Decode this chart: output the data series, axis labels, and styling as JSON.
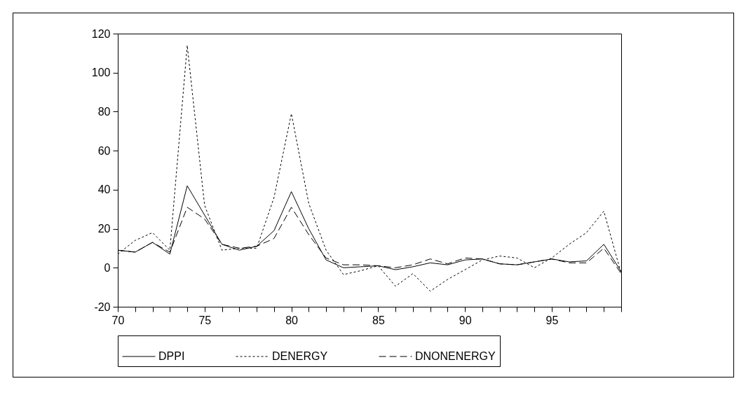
{
  "chart_data": {
    "type": "line",
    "x": [
      70,
      71,
      72,
      73,
      74,
      75,
      76,
      77,
      78,
      79,
      80,
      81,
      82,
      83,
      84,
      85,
      86,
      87,
      88,
      89,
      90,
      91,
      92,
      93,
      94,
      95,
      96,
      97,
      98,
      99
    ],
    "series": [
      {
        "name": "DPPI",
        "color": "#000000",
        "line_style": "solid",
        "values": [
          9,
          8,
          13,
          7,
          42,
          27,
          12,
          9,
          11,
          19,
          39,
          20,
          4,
          0,
          0.5,
          1,
          -1,
          0.5,
          2.5,
          1.5,
          4,
          4.5,
          2,
          1.5,
          3,
          4.5,
          3,
          3.5,
          12,
          -2
        ]
      },
      {
        "name": "DENERGY",
        "color": "#000000",
        "line_style": "dotted",
        "values": [
          7,
          14,
          18,
          9,
          114,
          32,
          9,
          10,
          10,
          36,
          79,
          33,
          9,
          -3.5,
          -1.5,
          1,
          -9.5,
          -3,
          -12,
          -6,
          -1,
          4,
          6,
          5,
          0,
          5,
          12,
          18,
          29,
          -3
        ]
      },
      {
        "name": "DNONENERGY",
        "color": "#000000",
        "line_style": "dashed",
        "values": [
          9,
          8,
          13,
          8,
          31,
          25,
          12,
          10,
          11,
          15,
          31,
          17,
          5,
          1.5,
          1.5,
          1,
          0,
          1.5,
          4.5,
          2,
          5,
          4.5,
          2,
          1.5,
          3,
          4.5,
          2.5,
          2.5,
          10,
          -3
        ]
      }
    ],
    "xlim": [
      70,
      99
    ],
    "xticks": [
      70,
      {
        "value": 71,
        "label": null
      },
      {
        "value": 72,
        "label": null
      },
      {
        "value": 73,
        "label": null
      },
      {
        "value": 74,
        "label": null
      },
      75,
      {
        "value": 76,
        "label": null
      },
      {
        "value": 77,
        "label": null
      },
      {
        "value": 78,
        "label": null
      },
      {
        "value": 79,
        "label": null
      },
      80,
      {
        "value": 81,
        "label": null
      },
      {
        "value": 82,
        "label": null
      },
      {
        "value": 83,
        "label": null
      },
      {
        "value": 84,
        "label": null
      },
      85,
      {
        "value": 86,
        "label": null
      },
      {
        "value": 87,
        "label": null
      },
      {
        "value": 88,
        "label": null
      },
      {
        "value": 89,
        "label": null
      },
      90,
      {
        "value": 91,
        "label": null
      },
      {
        "value": 92,
        "label": null
      },
      {
        "value": 93,
        "label": null
      },
      {
        "value": 94,
        "label": null
      },
      95,
      {
        "value": 96,
        "label": null
      },
      {
        "value": 97,
        "label": null
      },
      {
        "value": 98,
        "label": null
      },
      {
        "value": 99,
        "label": null
      }
    ],
    "ylim": [
      -20,
      120
    ],
    "yticks": [
      -20,
      0,
      20,
      40,
      60,
      80,
      100,
      120
    ],
    "grid": false,
    "legend": "bottom",
    "marker": "none"
  }
}
